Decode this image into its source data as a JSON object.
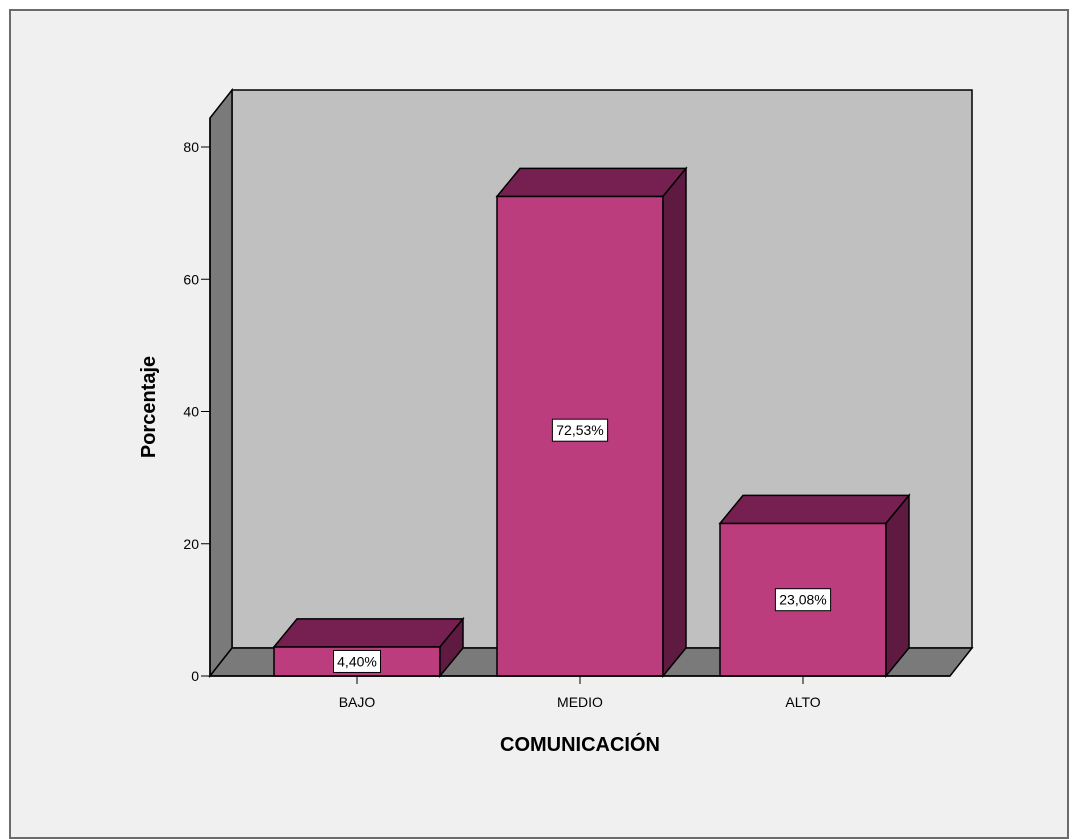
{
  "chart_data": {
    "type": "bar",
    "style": "3d",
    "categories": [
      "BAJO",
      "MEDIO",
      "ALTO"
    ],
    "values": [
      4.4,
      72.53,
      23.08
    ],
    "data_labels": [
      "4,40%",
      "72,53%",
      "23,08%"
    ],
    "xlabel": "COMUNICACIÓN",
    "ylabel": "Porcentaje",
    "ylim": [
      0,
      80
    ],
    "yticks": [
      0,
      20,
      40,
      60,
      80
    ],
    "grid": false,
    "colors": {
      "bar_front": "#bb3d7d",
      "bar_top": "#752050",
      "bar_side": "#5e1a40",
      "back_wall": "#c0c0c0",
      "side_wall": "#7a7a7a",
      "floor": "#7a7a7a",
      "background": "#f0f0f0"
    }
  }
}
